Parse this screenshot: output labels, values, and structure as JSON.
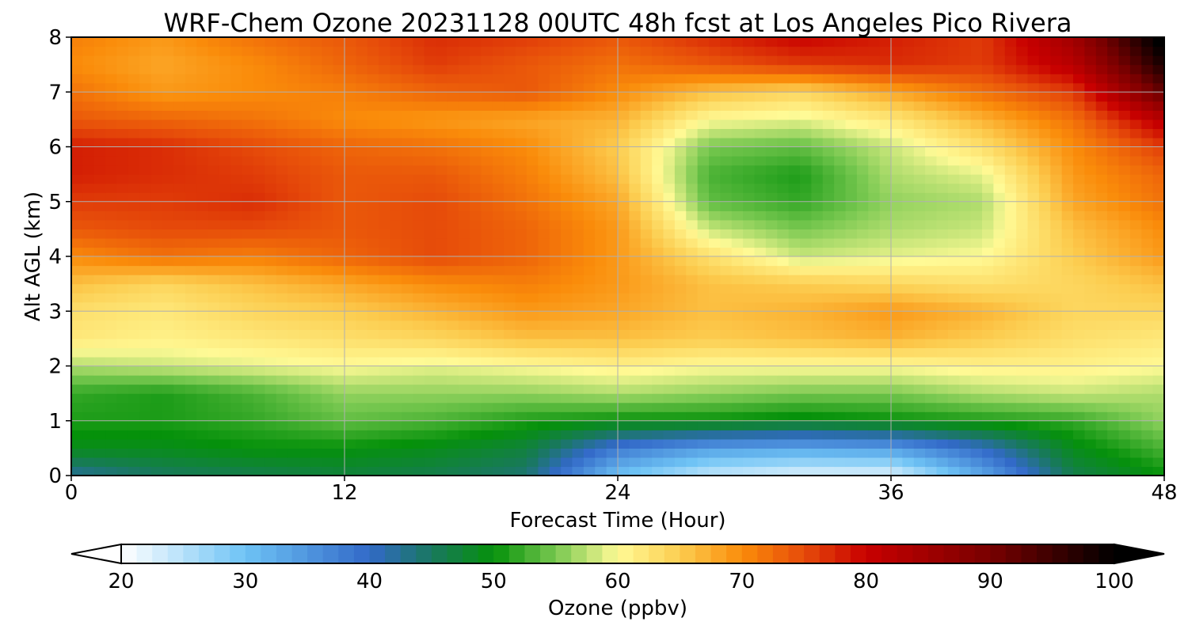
{
  "chart_data": {
    "type": "heatmap",
    "title": "WRF-Chem Ozone  20231128 00UTC 48h fcst at Los Angeles Pico Rivera",
    "xlabel": "Forecast Time (Hour)",
    "ylabel": "Alt AGL (km)",
    "xlim": [
      0,
      48
    ],
    "ylim": [
      0,
      8
    ],
    "xticks": [
      0,
      12,
      24,
      36,
      48
    ],
    "yticks": [
      0,
      1,
      2,
      3,
      4,
      5,
      6,
      7,
      8
    ],
    "grid": true,
    "x": [
      0,
      4,
      8,
      12,
      16,
      20,
      24,
      28,
      32,
      36,
      40,
      44,
      48
    ],
    "y": [
      0,
      0.5,
      1,
      1.5,
      2,
      2.5,
      3,
      3.5,
      4,
      4.5,
      5,
      5.5,
      6,
      6.5,
      7,
      7.5,
      8
    ],
    "z": [
      [
        42,
        45,
        46,
        47,
        46,
        44,
        30,
        24,
        22,
        22,
        33,
        46,
        50
      ],
      [
        49,
        49,
        50,
        50,
        49,
        47,
        38,
        34,
        33,
        34,
        40,
        49,
        53
      ],
      [
        51,
        51,
        52,
        54,
        53,
        51,
        50,
        50,
        49,
        50,
        51,
        52,
        56
      ],
      [
        52,
        51,
        53,
        56,
        56,
        56,
        57,
        56,
        55,
        55,
        57,
        58,
        57
      ],
      [
        57,
        58,
        59,
        60,
        59,
        60,
        61,
        60,
        60,
        60,
        61,
        61,
        60
      ],
      [
        62,
        61,
        62,
        63,
        64,
        66,
        66,
        65,
        66,
        67,
        65,
        63,
        62
      ],
      [
        63,
        62,
        64,
        65,
        67,
        69,
        68,
        66,
        67,
        69,
        67,
        64,
        64
      ],
      [
        66,
        64,
        66,
        68,
        70,
        71,
        69,
        66,
        65,
        64,
        63,
        64,
        66
      ],
      [
        70,
        72,
        71,
        73,
        75,
        73,
        69,
        63,
        58,
        59,
        60,
        65,
        69
      ],
      [
        74,
        75,
        75,
        74,
        75,
        73,
        69,
        58,
        55,
        57,
        58,
        66,
        70
      ],
      [
        76,
        76,
        77,
        74,
        75,
        72,
        68,
        54,
        52,
        56,
        57,
        68,
        72
      ],
      [
        78,
        77,
        76,
        74,
        74,
        71,
        66,
        53,
        51,
        57,
        59,
        69,
        73
      ],
      [
        78,
        77,
        75,
        73,
        72,
        70,
        65,
        55,
        54,
        58,
        63,
        70,
        76
      ],
      [
        74,
        73,
        72,
        70,
        69,
        68,
        67,
        60,
        59,
        62,
        67,
        72,
        82
      ],
      [
        72,
        69,
        70,
        71,
        73,
        74,
        70,
        66,
        64,
        68,
        72,
        76,
        92
      ],
      [
        70,
        68,
        70,
        73,
        76,
        74,
        72,
        74,
        76,
        77,
        76,
        82,
        98
      ],
      [
        71,
        69,
        72,
        74,
        77,
        76,
        74,
        77,
        80,
        78,
        76,
        85,
        102
      ]
    ],
    "colorbar": {
      "label": "Ozone  (ppbv)",
      "min": 20,
      "max": 100,
      "ticks": [
        20,
        30,
        40,
        50,
        60,
        70,
        80,
        90,
        100
      ],
      "extend": "both"
    }
  }
}
